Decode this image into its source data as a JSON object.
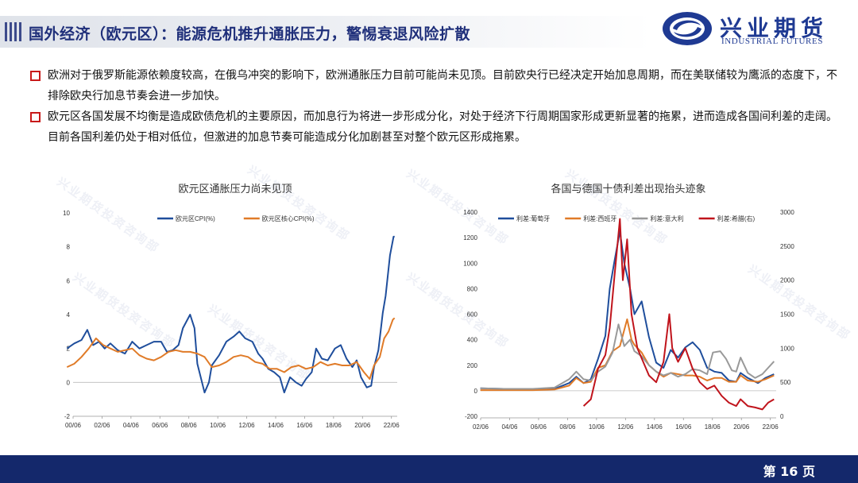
{
  "header": {
    "title": "国外经济（欧元区）：能源危机推升通胀压力，警惕衰退风险扩散",
    "logo_cn": "兴业期货",
    "logo_en": "INDUSTRIAL FUTURES"
  },
  "paragraphs": [
    "欧洲对于俄罗斯能源依赖度较高，在俄乌冲突的影响下，欧洲通胀压力目前可能尚未见顶。目前欧央行已经决定开始加息周期，而在美联储较为鹰派的态度下，不排除欧央行加息节奏会进一步加快。",
    "欧元区各国发展不均衡是造成欧债危机的主要原因，而加息行为将进一步形成分化，对处于经济下行周期国家形成更新显著的拖累，进而造成各国间利差的走阔。目前各国利差仍处于相对低位，但激进的加息节奏可能造成分化加剧甚至对整个欧元区形成拖累。"
  ],
  "watermark": "兴业期货投资咨询部",
  "footer": {
    "page": "第 16 页"
  },
  "colors": {
    "navy": "#14286b",
    "blue": "#1f4e9c",
    "orange": "#e07b28",
    "gray": "#999999",
    "red": "#c0141c",
    "bullet": "#c81a1a"
  },
  "chart_data": [
    {
      "type": "line",
      "title": "欧元区通胀压力尚未见顶",
      "x_ticks": [
        "00/06",
        "02/06",
        "04/06",
        "06/06",
        "08/06",
        "10/06",
        "12/06",
        "14/06",
        "16/06",
        "18/06",
        "20/06",
        "22/06"
      ],
      "x_range": [
        2000.42,
        2022.8
      ],
      "ylim": [
        -2,
        10
      ],
      "y_ticks": [
        "-2",
        "0",
        "2",
        "4",
        "6",
        "8",
        "10"
      ],
      "legend_position": "top",
      "series": [
        {
          "name": "欧元区CPI(%)",
          "color": "#1f4e9c",
          "points": [
            [
              2000.0,
              2.0
            ],
            [
              2000.5,
              2.3
            ],
            [
              2001.0,
              2.5
            ],
            [
              2001.4,
              3.1
            ],
            [
              2001.8,
              2.2
            ],
            [
              2002.2,
              2.4
            ],
            [
              2002.6,
              2.0
            ],
            [
              2003.0,
              2.3
            ],
            [
              2003.5,
              1.9
            ],
            [
              2004.0,
              1.7
            ],
            [
              2004.5,
              2.4
            ],
            [
              2005.0,
              2.0
            ],
            [
              2005.5,
              2.2
            ],
            [
              2006.0,
              2.4
            ],
            [
              2006.5,
              2.4
            ],
            [
              2006.9,
              1.8
            ],
            [
              2007.3,
              1.9
            ],
            [
              2007.7,
              2.2
            ],
            [
              2008.0,
              3.2
            ],
            [
              2008.5,
              4.0
            ],
            [
              2008.8,
              3.2
            ],
            [
              2009.0,
              1.1
            ],
            [
              2009.5,
              -0.6
            ],
            [
              2009.8,
              0.0
            ],
            [
              2010.0,
              1.0
            ],
            [
              2010.5,
              1.6
            ],
            [
              2011.0,
              2.4
            ],
            [
              2011.5,
              2.7
            ],
            [
              2011.9,
              3.0
            ],
            [
              2012.3,
              2.6
            ],
            [
              2012.8,
              2.4
            ],
            [
              2013.2,
              1.7
            ],
            [
              2013.5,
              1.4
            ],
            [
              2013.9,
              0.8
            ],
            [
              2014.3,
              0.6
            ],
            [
              2014.7,
              0.3
            ],
            [
              2015.0,
              -0.6
            ],
            [
              2015.4,
              0.3
            ],
            [
              2015.8,
              0.0
            ],
            [
              2016.2,
              -0.2
            ],
            [
              2016.5,
              0.2
            ],
            [
              2016.9,
              0.6
            ],
            [
              2017.2,
              2.0
            ],
            [
              2017.6,
              1.4
            ],
            [
              2018.0,
              1.3
            ],
            [
              2018.5,
              2.0
            ],
            [
              2018.9,
              2.2
            ],
            [
              2019.3,
              1.4
            ],
            [
              2019.7,
              0.9
            ],
            [
              2020.0,
              1.3
            ],
            [
              2020.3,
              0.3
            ],
            [
              2020.7,
              -0.3
            ],
            [
              2021.0,
              -0.2
            ],
            [
              2021.2,
              0.9
            ],
            [
              2021.5,
              1.9
            ],
            [
              2021.8,
              4.1
            ],
            [
              2022.0,
              5.1
            ],
            [
              2022.3,
              7.5
            ],
            [
              2022.55,
              8.6
            ],
            [
              2022.62,
              8.6
            ]
          ]
        },
        {
          "name": "欧元区核心CPI(%)",
          "color": "#e07b28",
          "points": [
            [
              2000.0,
              0.9
            ],
            [
              2000.5,
              1.1
            ],
            [
              2001.0,
              1.5
            ],
            [
              2001.5,
              2.0
            ],
            [
              2002.0,
              2.6
            ],
            [
              2002.5,
              2.2
            ],
            [
              2003.0,
              2.0
            ],
            [
              2003.5,
              1.8
            ],
            [
              2004.0,
              1.9
            ],
            [
              2004.5,
              2.0
            ],
            [
              2005.0,
              1.6
            ],
            [
              2005.5,
              1.4
            ],
            [
              2006.0,
              1.3
            ],
            [
              2006.5,
              1.5
            ],
            [
              2007.0,
              1.8
            ],
            [
              2007.5,
              1.9
            ],
            [
              2008.0,
              1.8
            ],
            [
              2008.5,
              1.8
            ],
            [
              2009.0,
              1.7
            ],
            [
              2009.5,
              1.5
            ],
            [
              2010.0,
              0.9
            ],
            [
              2010.5,
              1.0
            ],
            [
              2011.0,
              1.2
            ],
            [
              2011.5,
              1.5
            ],
            [
              2012.0,
              1.6
            ],
            [
              2012.5,
              1.5
            ],
            [
              2013.0,
              1.2
            ],
            [
              2013.5,
              1.1
            ],
            [
              2014.0,
              0.8
            ],
            [
              2014.5,
              0.8
            ],
            [
              2015.0,
              0.6
            ],
            [
              2015.5,
              0.9
            ],
            [
              2016.0,
              1.0
            ],
            [
              2016.5,
              0.8
            ],
            [
              2017.0,
              0.9
            ],
            [
              2017.5,
              1.2
            ],
            [
              2018.0,
              1.0
            ],
            [
              2018.5,
              1.1
            ],
            [
              2019.0,
              1.0
            ],
            [
              2019.5,
              1.0
            ],
            [
              2020.0,
              1.2
            ],
            [
              2020.5,
              0.6
            ],
            [
              2020.9,
              0.2
            ],
            [
              2021.2,
              1.0
            ],
            [
              2021.6,
              1.5
            ],
            [
              2021.9,
              2.6
            ],
            [
              2022.2,
              3.0
            ],
            [
              2022.5,
              3.7
            ],
            [
              2022.62,
              3.8
            ]
          ]
        }
      ]
    },
    {
      "type": "line",
      "title": "各国与德国十债利差出现抬头迹象",
      "x_ticks": [
        "02/06",
        "04/06",
        "06/06",
        "08/06",
        "10/06",
        "12/06",
        "14/06",
        "16/06",
        "18/06",
        "20/06",
        "22/06"
      ],
      "x_range": [
        2002.42,
        2022.75
      ],
      "ylim": [
        -200,
        1400
      ],
      "y_ticks": [
        "-200",
        "0",
        "200",
        "400",
        "600",
        "800",
        "1000",
        "1200",
        "1400"
      ],
      "ylim_right": [
        0,
        3000
      ],
      "y_ticks_right": [
        "0",
        "500",
        "1000",
        "1500",
        "2000",
        "2500",
        "3000"
      ],
      "legend_position": "top",
      "series": [
        {
          "name": "利差:葡萄牙",
          "color": "#1f4e9c",
          "axis": "left",
          "points": [
            [
              2002.4,
              20
            ],
            [
              2004,
              15
            ],
            [
              2006,
              10
            ],
            [
              2007.5,
              15
            ],
            [
              2008.5,
              60
            ],
            [
              2009,
              110
            ],
            [
              2009.5,
              60
            ],
            [
              2010,
              90
            ],
            [
              2010.5,
              250
            ],
            [
              2011,
              430
            ],
            [
              2011.3,
              800
            ],
            [
              2011.6,
              1000
            ],
            [
              2012.0,
              1250
            ],
            [
              2012.3,
              1000
            ],
            [
              2012.7,
              800
            ],
            [
              2013,
              600
            ],
            [
              2013.5,
              700
            ],
            [
              2014,
              420
            ],
            [
              2014.5,
              220
            ],
            [
              2015,
              180
            ],
            [
              2015.5,
              320
            ],
            [
              2016,
              260
            ],
            [
              2016.5,
              340
            ],
            [
              2017,
              380
            ],
            [
              2017.5,
              320
            ],
            [
              2018,
              180
            ],
            [
              2018.5,
              150
            ],
            [
              2019,
              140
            ],
            [
              2019.5,
              80
            ],
            [
              2020,
              70
            ],
            [
              2020.3,
              140
            ],
            [
              2020.8,
              100
            ],
            [
              2021.5,
              60
            ],
            [
              2022,
              100
            ],
            [
              2022.6,
              130
            ]
          ]
        },
        {
          "name": "利差:西班牙",
          "color": "#e07b28",
          "axis": "left",
          "points": [
            [
              2002.4,
              5
            ],
            [
              2004,
              5
            ],
            [
              2006,
              5
            ],
            [
              2007.5,
              10
            ],
            [
              2008.5,
              40
            ],
            [
              2009,
              100
            ],
            [
              2009.5,
              60
            ],
            [
              2010,
              70
            ],
            [
              2010.5,
              180
            ],
            [
              2011,
              200
            ],
            [
              2011.5,
              310
            ],
            [
              2012,
              350
            ],
            [
              2012.5,
              560
            ],
            [
              2012.8,
              400
            ],
            [
              2013,
              360
            ],
            [
              2013.5,
              300
            ],
            [
              2014,
              200
            ],
            [
              2014.5,
              150
            ],
            [
              2015,
              110
            ],
            [
              2015.5,
              140
            ],
            [
              2016,
              130
            ],
            [
              2016.5,
              120
            ],
            [
              2017,
              120
            ],
            [
              2017.5,
              110
            ],
            [
              2018,
              80
            ],
            [
              2018.5,
              100
            ],
            [
              2019,
              100
            ],
            [
              2019.5,
              70
            ],
            [
              2020,
              70
            ],
            [
              2020.3,
              120
            ],
            [
              2020.8,
              80
            ],
            [
              2021.5,
              70
            ],
            [
              2022,
              90
            ],
            [
              2022.6,
              120
            ]
          ]
        },
        {
          "name": "利差:意大利",
          "color": "#999999",
          "axis": "left",
          "points": [
            [
              2002.4,
              20
            ],
            [
              2004,
              15
            ],
            [
              2006,
              15
            ],
            [
              2007.5,
              25
            ],
            [
              2008.5,
              90
            ],
            [
              2009,
              150
            ],
            [
              2009.5,
              90
            ],
            [
              2010,
              80
            ],
            [
              2010.5,
              150
            ],
            [
              2011,
              190
            ],
            [
              2011.5,
              300
            ],
            [
              2011.9,
              520
            ],
            [
              2012.3,
              350
            ],
            [
              2012.7,
              400
            ],
            [
              2013,
              310
            ],
            [
              2013.5,
              270
            ],
            [
              2014,
              200
            ],
            [
              2014.5,
              150
            ],
            [
              2015,
              120
            ],
            [
              2015.5,
              140
            ],
            [
              2016,
              110
            ],
            [
              2016.5,
              130
            ],
            [
              2017,
              170
            ],
            [
              2017.5,
              160
            ],
            [
              2018,
              130
            ],
            [
              2018.4,
              300
            ],
            [
              2018.9,
              310
            ],
            [
              2019.3,
              250
            ],
            [
              2019.7,
              160
            ],
            [
              2020,
              150
            ],
            [
              2020.3,
              260
            ],
            [
              2020.8,
              140
            ],
            [
              2021.3,
              100
            ],
            [
              2021.8,
              130
            ],
            [
              2022.2,
              180
            ],
            [
              2022.6,
              230
            ]
          ]
        },
        {
          "name": "利差:希腊(右)",
          "color": "#c0141c",
          "axis": "right",
          "points": [
            [
              2009.5,
              150
            ],
            [
              2010,
              250
            ],
            [
              2010.5,
              700
            ],
            [
              2011,
              900
            ],
            [
              2011.3,
              1300
            ],
            [
              2011.6,
              2000
            ],
            [
              2012.0,
              2900
            ],
            [
              2012.2,
              2000
            ],
            [
              2012.5,
              2600
            ],
            [
              2012.8,
              1500
            ],
            [
              2013.2,
              1000
            ],
            [
              2013.6,
              800
            ],
            [
              2014.0,
              600
            ],
            [
              2014.5,
              500
            ],
            [
              2015.0,
              800
            ],
            [
              2015.4,
              1500
            ],
            [
              2015.6,
              1000
            ],
            [
              2016,
              800
            ],
            [
              2016.5,
              1000
            ],
            [
              2017,
              700
            ],
            [
              2017.5,
              500
            ],
            [
              2018,
              400
            ],
            [
              2018.5,
              450
            ],
            [
              2019,
              300
            ],
            [
              2019.5,
              200
            ],
            [
              2020,
              150
            ],
            [
              2020.3,
              250
            ],
            [
              2020.8,
              150
            ],
            [
              2021.3,
              130
            ],
            [
              2021.8,
              100
            ],
            [
              2022.2,
              200
            ],
            [
              2022.6,
              250
            ]
          ]
        }
      ]
    }
  ]
}
